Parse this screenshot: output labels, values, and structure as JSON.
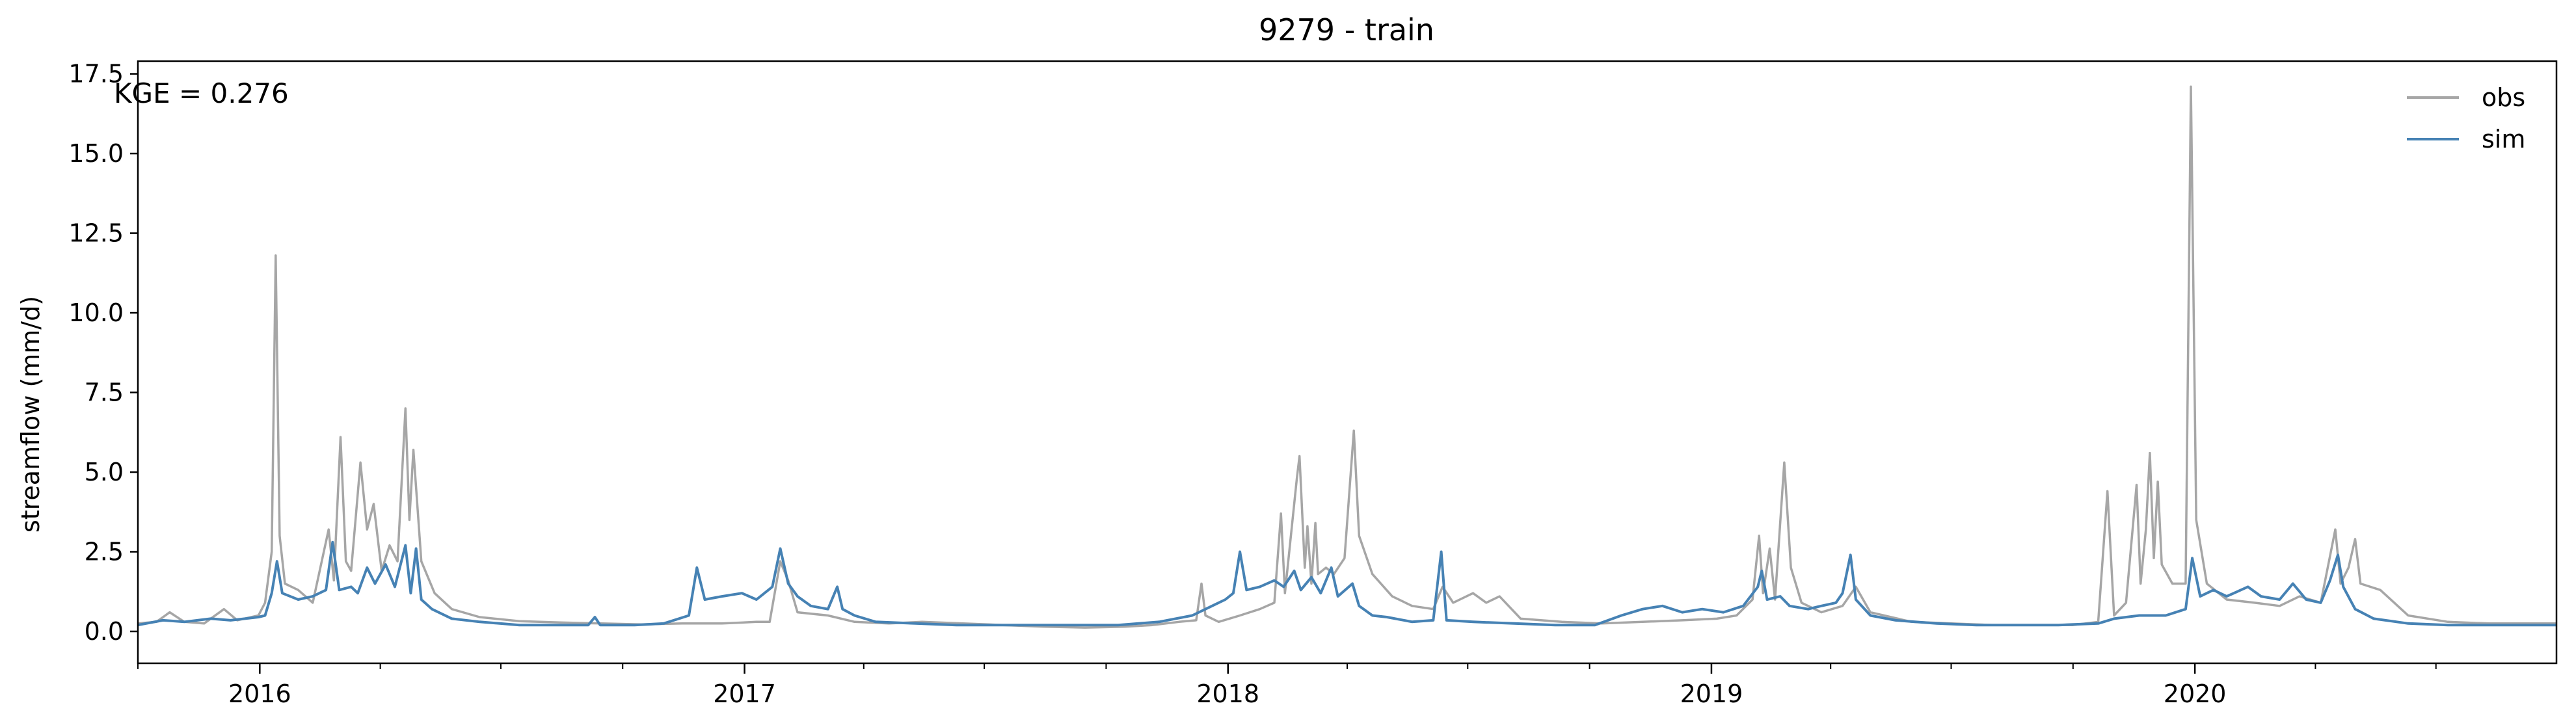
{
  "chart_data": {
    "type": "line",
    "title": "9279 - train",
    "xlabel": "",
    "ylabel": "streamflow (mm/d)",
    "annotation": "KGE = 0.276",
    "legend_position": "top-right",
    "grid": false,
    "x_start": "2015-10-01",
    "x_end": "2020-09-30",
    "xlim": [
      "2015-10-01",
      "2020-09-30"
    ],
    "ylim": [
      -1.0,
      17.9
    ],
    "y_ticks": [
      0.0,
      2.5,
      5.0,
      7.5,
      10.0,
      12.5,
      15.0,
      17.5
    ],
    "y_tick_labels": [
      "0.0",
      "2.5",
      "5.0",
      "7.5",
      "10.0",
      "12.5",
      "15.0",
      "17.5"
    ],
    "x_ticks": [
      "2016-01-01",
      "2017-01-01",
      "2018-01-01",
      "2019-01-01",
      "2020-01-01"
    ],
    "x_tick_labels": [
      "2016",
      "2017",
      "2018",
      "2019",
      "2020"
    ],
    "series": [
      {
        "name": "obs",
        "color": "#a6a6a6",
        "points": [
          [
            "2015-10-01",
            0.25
          ],
          [
            "2015-10-15",
            0.3
          ],
          [
            "2015-10-25",
            0.6
          ],
          [
            "2015-11-05",
            0.3
          ],
          [
            "2015-11-20",
            0.25
          ],
          [
            "2015-12-05",
            0.7
          ],
          [
            "2015-12-15",
            0.35
          ],
          [
            "2015-12-31",
            0.5
          ],
          [
            "2016-01-05",
            0.9
          ],
          [
            "2016-01-10",
            2.5
          ],
          [
            "2016-01-13",
            11.8
          ],
          [
            "2016-01-16",
            3.0
          ],
          [
            "2016-01-20",
            1.5
          ],
          [
            "2016-01-30",
            1.3
          ],
          [
            "2016-02-10",
            0.9
          ],
          [
            "2016-02-22",
            3.2
          ],
          [
            "2016-02-26",
            1.6
          ],
          [
            "2016-03-02",
            6.1
          ],
          [
            "2016-03-06",
            2.2
          ],
          [
            "2016-03-10",
            1.9
          ],
          [
            "2016-03-17",
            5.3
          ],
          [
            "2016-03-22",
            3.2
          ],
          [
            "2016-03-27",
            4.0
          ],
          [
            "2016-04-02",
            1.9
          ],
          [
            "2016-04-08",
            2.7
          ],
          [
            "2016-04-14",
            2.2
          ],
          [
            "2016-04-20",
            7.0
          ],
          [
            "2016-04-23",
            3.5
          ],
          [
            "2016-04-26",
            5.7
          ],
          [
            "2016-05-02",
            2.2
          ],
          [
            "2016-05-12",
            1.2
          ],
          [
            "2016-05-25",
            0.7
          ],
          [
            "2016-06-15",
            0.45
          ],
          [
            "2016-07-15",
            0.32
          ],
          [
            "2016-08-15",
            0.28
          ],
          [
            "2016-09-15",
            0.25
          ],
          [
            "2016-10-15",
            0.22
          ],
          [
            "2016-11-15",
            0.25
          ],
          [
            "2016-12-15",
            0.25
          ],
          [
            "2017-01-10",
            0.3
          ],
          [
            "2017-01-20",
            0.3
          ],
          [
            "2017-01-28",
            2.2
          ],
          [
            "2017-02-03",
            1.6
          ],
          [
            "2017-02-10",
            0.6
          ],
          [
            "2017-03-05",
            0.5
          ],
          [
            "2017-03-25",
            0.3
          ],
          [
            "2017-04-20",
            0.25
          ],
          [
            "2017-05-15",
            0.3
          ],
          [
            "2017-06-15",
            0.25
          ],
          [
            "2017-07-15",
            0.2
          ],
          [
            "2017-08-15",
            0.15
          ],
          [
            "2017-09-15",
            0.12
          ],
          [
            "2017-10-15",
            0.15
          ],
          [
            "2017-11-05",
            0.2
          ],
          [
            "2017-11-25",
            0.3
          ],
          [
            "2017-12-08",
            0.35
          ],
          [
            "2017-12-12",
            1.5
          ],
          [
            "2017-12-15",
            0.5
          ],
          [
            "2017-12-25",
            0.3
          ],
          [
            "2018-01-10",
            0.5
          ],
          [
            "2018-01-25",
            0.7
          ],
          [
            "2018-02-05",
            0.9
          ],
          [
            "2018-02-10",
            3.7
          ],
          [
            "2018-02-13",
            1.2
          ],
          [
            "2018-02-22",
            4.8
          ],
          [
            "2018-02-24",
            5.5
          ],
          [
            "2018-02-28",
            2.0
          ],
          [
            "2018-03-02",
            3.3
          ],
          [
            "2018-03-05",
            1.5
          ],
          [
            "2018-03-08",
            3.4
          ],
          [
            "2018-03-10",
            1.8
          ],
          [
            "2018-03-16",
            2.0
          ],
          [
            "2018-03-22",
            1.8
          ],
          [
            "2018-03-30",
            2.3
          ],
          [
            "2018-04-06",
            6.3
          ],
          [
            "2018-04-10",
            3.0
          ],
          [
            "2018-04-20",
            1.8
          ],
          [
            "2018-05-05",
            1.1
          ],
          [
            "2018-05-20",
            0.8
          ],
          [
            "2018-06-05",
            0.7
          ],
          [
            "2018-06-12",
            1.4
          ],
          [
            "2018-06-20",
            0.9
          ],
          [
            "2018-07-05",
            1.2
          ],
          [
            "2018-07-15",
            0.9
          ],
          [
            "2018-07-25",
            1.1
          ],
          [
            "2018-08-10",
            0.4
          ],
          [
            "2018-09-10",
            0.3
          ],
          [
            "2018-10-10",
            0.25
          ],
          [
            "2018-11-10",
            0.3
          ],
          [
            "2018-12-10",
            0.35
          ],
          [
            "2019-01-05",
            0.4
          ],
          [
            "2019-01-20",
            0.5
          ],
          [
            "2019-02-01",
            1.0
          ],
          [
            "2019-02-06",
            3.0
          ],
          [
            "2019-02-09",
            1.2
          ],
          [
            "2019-02-14",
            2.6
          ],
          [
            "2019-02-18",
            1.0
          ],
          [
            "2019-02-25",
            5.3
          ],
          [
            "2019-03-02",
            2.0
          ],
          [
            "2019-03-10",
            0.9
          ],
          [
            "2019-03-25",
            0.6
          ],
          [
            "2019-04-10",
            0.8
          ],
          [
            "2019-04-20",
            1.4
          ],
          [
            "2019-05-01",
            0.6
          ],
          [
            "2019-06-01",
            0.3
          ],
          [
            "2019-07-01",
            0.25
          ],
          [
            "2019-08-01",
            0.2
          ],
          [
            "2019-09-01",
            0.2
          ],
          [
            "2019-10-01",
            0.2
          ],
          [
            "2019-10-20",
            0.3
          ],
          [
            "2019-10-27",
            4.4
          ],
          [
            "2019-11-01",
            0.5
          ],
          [
            "2019-11-10",
            0.9
          ],
          [
            "2019-11-18",
            4.6
          ],
          [
            "2019-11-21",
            1.5
          ],
          [
            "2019-11-25",
            3.2
          ],
          [
            "2019-11-28",
            5.6
          ],
          [
            "2019-12-01",
            2.3
          ],
          [
            "2019-12-04",
            4.7
          ],
          [
            "2019-12-07",
            2.1
          ],
          [
            "2019-12-15",
            1.5
          ],
          [
            "2019-12-25",
            1.5
          ],
          [
            "2019-12-29",
            17.1
          ],
          [
            "2020-01-02",
            3.5
          ],
          [
            "2020-01-10",
            1.5
          ],
          [
            "2020-01-25",
            1.0
          ],
          [
            "2020-02-15",
            0.9
          ],
          [
            "2020-03-05",
            0.8
          ],
          [
            "2020-03-20",
            1.1
          ],
          [
            "2020-04-05",
            0.9
          ],
          [
            "2020-04-16",
            3.2
          ],
          [
            "2020-04-20",
            1.5
          ],
          [
            "2020-04-26",
            2.0
          ],
          [
            "2020-05-01",
            2.9
          ],
          [
            "2020-05-05",
            1.5
          ],
          [
            "2020-05-20",
            1.3
          ],
          [
            "2020-06-10",
            0.5
          ],
          [
            "2020-07-10",
            0.3
          ],
          [
            "2020-08-10",
            0.25
          ],
          [
            "2020-09-10",
            0.25
          ],
          [
            "2020-09-30",
            0.25
          ]
        ]
      },
      {
        "name": "sim",
        "color": "#4682b4",
        "points": [
          [
            "2015-10-01",
            0.2
          ],
          [
            "2015-10-20",
            0.35
          ],
          [
            "2015-11-05",
            0.3
          ],
          [
            "2015-11-25",
            0.4
          ],
          [
            "2015-12-10",
            0.35
          ],
          [
            "2015-12-31",
            0.45
          ],
          [
            "2016-01-05",
            0.5
          ],
          [
            "2016-01-10",
            1.2
          ],
          [
            "2016-01-14",
            2.2
          ],
          [
            "2016-01-18",
            1.2
          ],
          [
            "2016-01-30",
            1.0
          ],
          [
            "2016-02-10",
            1.1
          ],
          [
            "2016-02-20",
            1.3
          ],
          [
            "2016-02-25",
            2.8
          ],
          [
            "2016-03-01",
            1.3
          ],
          [
            "2016-03-10",
            1.4
          ],
          [
            "2016-03-15",
            1.2
          ],
          [
            "2016-03-22",
            2.0
          ],
          [
            "2016-03-28",
            1.5
          ],
          [
            "2016-04-05",
            2.1
          ],
          [
            "2016-04-12",
            1.4
          ],
          [
            "2016-04-20",
            2.7
          ],
          [
            "2016-04-24",
            1.2
          ],
          [
            "2016-04-28",
            2.6
          ],
          [
            "2016-05-02",
            1.0
          ],
          [
            "2016-05-10",
            0.7
          ],
          [
            "2016-05-25",
            0.4
          ],
          [
            "2016-06-15",
            0.3
          ],
          [
            "2016-07-15",
            0.2
          ],
          [
            "2016-08-15",
            0.2
          ],
          [
            "2016-09-05",
            0.2
          ],
          [
            "2016-09-10",
            0.45
          ],
          [
            "2016-09-14",
            0.2
          ],
          [
            "2016-10-10",
            0.2
          ],
          [
            "2016-11-01",
            0.25
          ],
          [
            "2016-11-20",
            0.5
          ],
          [
            "2016-11-26",
            2.0
          ],
          [
            "2016-12-02",
            1.0
          ],
          [
            "2016-12-15",
            1.1
          ],
          [
            "2016-12-30",
            1.2
          ],
          [
            "2017-01-10",
            1.0
          ],
          [
            "2017-01-22",
            1.4
          ],
          [
            "2017-01-28",
            2.6
          ],
          [
            "2017-02-03",
            1.5
          ],
          [
            "2017-02-10",
            1.1
          ],
          [
            "2017-02-20",
            0.8
          ],
          [
            "2017-03-05",
            0.7
          ],
          [
            "2017-03-12",
            1.4
          ],
          [
            "2017-03-16",
            0.7
          ],
          [
            "2017-03-25",
            0.5
          ],
          [
            "2017-04-10",
            0.3
          ],
          [
            "2017-05-10",
            0.25
          ],
          [
            "2017-06-10",
            0.2
          ],
          [
            "2017-07-10",
            0.2
          ],
          [
            "2017-08-10",
            0.2
          ],
          [
            "2017-09-10",
            0.2
          ],
          [
            "2017-10-10",
            0.2
          ],
          [
            "2017-11-10",
            0.3
          ],
          [
            "2017-12-05",
            0.5
          ],
          [
            "2017-12-20",
            0.8
          ],
          [
            "2017-12-30",
            1.0
          ],
          [
            "2018-01-05",
            1.2
          ],
          [
            "2018-01-10",
            2.5
          ],
          [
            "2018-01-15",
            1.3
          ],
          [
            "2018-01-25",
            1.4
          ],
          [
            "2018-02-05",
            1.6
          ],
          [
            "2018-02-12",
            1.4
          ],
          [
            "2018-02-20",
            1.9
          ],
          [
            "2018-02-25",
            1.3
          ],
          [
            "2018-03-05",
            1.7
          ],
          [
            "2018-03-12",
            1.2
          ],
          [
            "2018-03-20",
            2.0
          ],
          [
            "2018-03-25",
            1.1
          ],
          [
            "2018-04-05",
            1.5
          ],
          [
            "2018-04-10",
            0.8
          ],
          [
            "2018-04-20",
            0.5
          ],
          [
            "2018-05-01",
            0.45
          ],
          [
            "2018-05-20",
            0.3
          ],
          [
            "2018-06-05",
            0.35
          ],
          [
            "2018-06-11",
            2.5
          ],
          [
            "2018-06-15",
            0.35
          ],
          [
            "2018-07-05",
            0.3
          ],
          [
            "2018-08-05",
            0.25
          ],
          [
            "2018-09-05",
            0.2
          ],
          [
            "2018-10-05",
            0.2
          ],
          [
            "2018-10-25",
            0.5
          ],
          [
            "2018-11-10",
            0.7
          ],
          [
            "2018-11-25",
            0.8
          ],
          [
            "2018-12-10",
            0.6
          ],
          [
            "2018-12-25",
            0.7
          ],
          [
            "2019-01-10",
            0.6
          ],
          [
            "2019-01-25",
            0.8
          ],
          [
            "2019-02-05",
            1.4
          ],
          [
            "2019-02-08",
            1.9
          ],
          [
            "2019-02-12",
            1.0
          ],
          [
            "2019-02-22",
            1.1
          ],
          [
            "2019-03-01",
            0.8
          ],
          [
            "2019-03-15",
            0.7
          ],
          [
            "2019-03-25",
            0.8
          ],
          [
            "2019-04-05",
            0.9
          ],
          [
            "2019-04-10",
            1.2
          ],
          [
            "2019-04-16",
            2.4
          ],
          [
            "2019-04-20",
            1.0
          ],
          [
            "2019-05-01",
            0.5
          ],
          [
            "2019-05-20",
            0.35
          ],
          [
            "2019-06-20",
            0.25
          ],
          [
            "2019-07-20",
            0.2
          ],
          [
            "2019-08-20",
            0.2
          ],
          [
            "2019-09-20",
            0.2
          ],
          [
            "2019-10-20",
            0.25
          ],
          [
            "2019-11-01",
            0.4
          ],
          [
            "2019-11-20",
            0.5
          ],
          [
            "2019-12-10",
            0.5
          ],
          [
            "2019-12-25",
            0.7
          ],
          [
            "2019-12-30",
            2.3
          ],
          [
            "2020-01-05",
            1.1
          ],
          [
            "2020-01-15",
            1.3
          ],
          [
            "2020-01-25",
            1.1
          ],
          [
            "2020-02-10",
            1.4
          ],
          [
            "2020-02-20",
            1.1
          ],
          [
            "2020-03-05",
            1.0
          ],
          [
            "2020-03-15",
            1.5
          ],
          [
            "2020-03-25",
            1.0
          ],
          [
            "2020-04-05",
            0.9
          ],
          [
            "2020-04-12",
            1.6
          ],
          [
            "2020-04-18",
            2.4
          ],
          [
            "2020-04-22",
            1.4
          ],
          [
            "2020-05-01",
            0.7
          ],
          [
            "2020-05-15",
            0.4
          ],
          [
            "2020-06-10",
            0.25
          ],
          [
            "2020-07-10",
            0.2
          ],
          [
            "2020-08-10",
            0.2
          ],
          [
            "2020-09-10",
            0.2
          ],
          [
            "2020-09-30",
            0.2
          ]
        ]
      }
    ]
  }
}
